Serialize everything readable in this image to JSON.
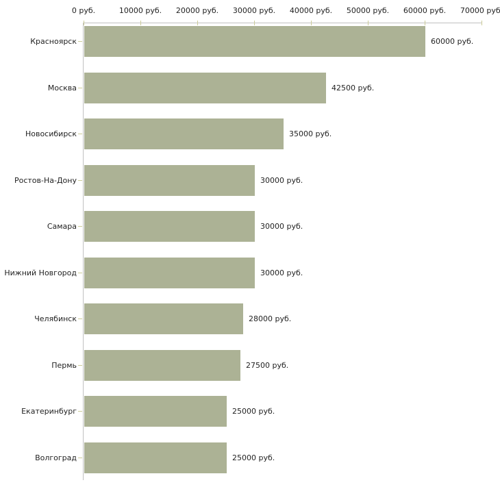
{
  "chart_data": {
    "type": "bar",
    "orientation": "horizontal",
    "categories": [
      "Красноярск",
      "Москва",
      "Новосибирск",
      "Ростов-На-Дону",
      "Самара",
      "Нижний Новгород",
      "Челябинск",
      "Пермь",
      "Екатеринбург",
      "Волгоград"
    ],
    "values": [
      60000,
      42500,
      35000,
      30000,
      30000,
      30000,
      28000,
      27500,
      25000,
      25000
    ],
    "value_labels": [
      "60000 руб.",
      "42500 руб.",
      "35000 руб.",
      "30000 руб.",
      "30000 руб.",
      "30000 руб.",
      "28000 руб.",
      "27500 руб.",
      "25000 руб.",
      "25000 руб."
    ],
    "x_tick_labels": [
      "0 руб.",
      "10000 руб.",
      "20000 руб.",
      "30000 руб.",
      "40000 руб.",
      "50000 руб.",
      "60000 руб.",
      "70000 руб."
    ],
    "x_tick_values": [
      0,
      10000,
      20000,
      30000,
      40000,
      50000,
      60000,
      70000
    ],
    "xlim": [
      0,
      70000
    ],
    "unit_suffix": "руб.",
    "grid": false,
    "legend_position": "none",
    "bar_color": "#acb295",
    "axis_color": "#c0c0c0",
    "tick_color": "#cccc99",
    "text_color": "#222222",
    "background_color": "#ffffff"
  }
}
